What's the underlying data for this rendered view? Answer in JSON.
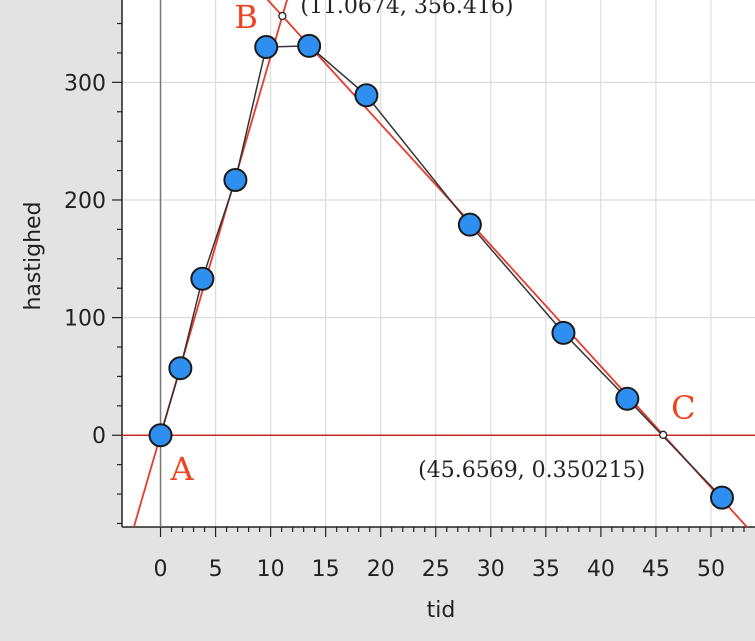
{
  "chart_data": {
    "type": "scatter",
    "xlabel": "tid",
    "ylabel": "hastighed",
    "xlim": [
      -3.5,
      54
    ],
    "ylim": [
      -78,
      370
    ],
    "x_ticks": [
      0,
      5,
      10,
      15,
      20,
      25,
      30,
      35,
      40,
      45,
      50
    ],
    "y_ticks": [
      0,
      100,
      200,
      300
    ],
    "grid": true,
    "series": [
      {
        "points": [
          {
            "x": 0,
            "y": 0
          },
          {
            "x": 1.8,
            "y": 57
          },
          {
            "x": 3.8,
            "y": 133
          },
          {
            "x": 6.8,
            "y": 217
          },
          {
            "x": 9.6,
            "y": 330
          },
          {
            "x": 13.5,
            "y": 331
          },
          {
            "x": 18.7,
            "y": 289
          },
          {
            "x": 28.1,
            "y": 179
          },
          {
            "x": 36.6,
            "y": 87
          },
          {
            "x": 42.4,
            "y": 31
          },
          {
            "x": 51,
            "y": -53
          }
        ],
        "color": "#2f8ff0",
        "connect": true
      }
    ],
    "fit_lines": [
      {
        "from": {
          "x": 0,
          "y": 0
        },
        "to": {
          "x": 11.0674,
          "y": 356.416
        },
        "color": "#e43b2c"
      },
      {
        "from": {
          "x": 11.0674,
          "y": 356.416
        },
        "to": {
          "x": 45.6569,
          "y": 0.350215
        },
        "color": "#e43b2c"
      }
    ],
    "horizontal_line": {
      "y": 0,
      "color": "#cc2a1e"
    },
    "labeled_points": [
      {
        "letter": "A",
        "x": 0,
        "y": 0,
        "coords": ""
      },
      {
        "letter": "B",
        "x": 11.0674,
        "y": 356.416,
        "coords": "(11.0674, 356.416)"
      },
      {
        "letter": "C",
        "x": 45.6569,
        "y": 0.350215,
        "coords": "(45.6569, 0.350215)"
      }
    ]
  }
}
